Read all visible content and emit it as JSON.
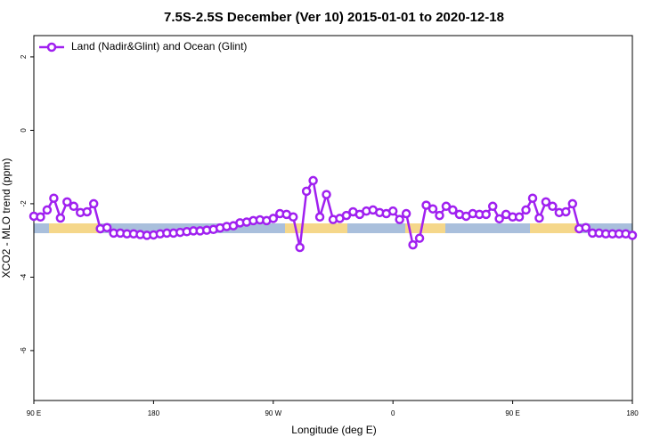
{
  "chart_data": {
    "type": "line",
    "title": "7.5S-2.5S December (Ver 10)   2015-01-01 to 2020-12-18",
    "xlabel": "Longitude (deg E)",
    "ylabel": "XCO2 - MLO trend (ppm)",
    "legend": "top-left",
    "xlim": [
      90,
      540
    ],
    "xticks": [
      {
        "value": 90,
        "label": "90 E"
      },
      180,
      {
        "value": 270,
        "label": "90 W"
      },
      {
        "value": 360,
        "label": "0"
      },
      {
        "value": 450,
        "label": "90 E"
      },
      {
        "value": 540,
        "label": "180"
      }
    ],
    "ylim": [
      -7.36,
      2.58
    ],
    "yticks": [
      2,
      0,
      -2,
      -4,
      -6
    ],
    "x": [
      90,
      95,
      100,
      105,
      110,
      115,
      120,
      125,
      130,
      135,
      140,
      145,
      150,
      155,
      160,
      165,
      170,
      175,
      180,
      185,
      190,
      195,
      200,
      205,
      210,
      215,
      220,
      225,
      230,
      235,
      240,
      245,
      250,
      255,
      260,
      265,
      270,
      275,
      280,
      285,
      290,
      295,
      300,
      305,
      310,
      315,
      320,
      325,
      330,
      335,
      340,
      345,
      350,
      355,
      360,
      365,
      370,
      375,
      380,
      385,
      390,
      395,
      400,
      405,
      410,
      415,
      420,
      425,
      430,
      435,
      440,
      445,
      450,
      455,
      460,
      465,
      470,
      475,
      480,
      485,
      490,
      495,
      500,
      505,
      510,
      515,
      520,
      525,
      530,
      535,
      540
    ],
    "series": [
      {
        "name": "Land (Nadir&Glint) and Ocean (Glint)",
        "color": "#a020f0",
        "values": [
          -2.34,
          -2.36,
          -2.17,
          -1.85,
          -2.39,
          -1.95,
          -2.07,
          -2.24,
          -2.22,
          -2.0,
          -2.68,
          -2.65,
          -2.8,
          -2.8,
          -2.82,
          -2.82,
          -2.84,
          -2.86,
          -2.85,
          -2.82,
          -2.8,
          -2.8,
          -2.78,
          -2.76,
          -2.74,
          -2.74,
          -2.72,
          -2.7,
          -2.66,
          -2.62,
          -2.6,
          -2.52,
          -2.5,
          -2.46,
          -2.44,
          -2.46,
          -2.4,
          -2.27,
          -2.29,
          -2.36,
          -3.19,
          -1.66,
          -1.37,
          -2.36,
          -1.75,
          -2.43,
          -2.4,
          -2.32,
          -2.22,
          -2.29,
          -2.2,
          -2.17,
          -2.24,
          -2.27,
          -2.2,
          -2.43,
          -2.27,
          -3.12,
          -2.94,
          -2.04,
          -2.14,
          -2.32,
          -2.07,
          -2.17,
          -2.29,
          -2.34,
          -2.27,
          -2.29,
          -2.29,
          -2.07,
          -2.41,
          -2.29,
          -2.36,
          -2.36,
          -2.17,
          -1.85,
          -2.39,
          -1.95,
          -2.07,
          -2.24,
          -2.22,
          -2.0,
          -2.68,
          -2.65,
          -2.8,
          -2.8,
          -2.82,
          -2.82,
          -2.82,
          -2.82,
          -2.86
        ]
      }
    ]
  }
}
